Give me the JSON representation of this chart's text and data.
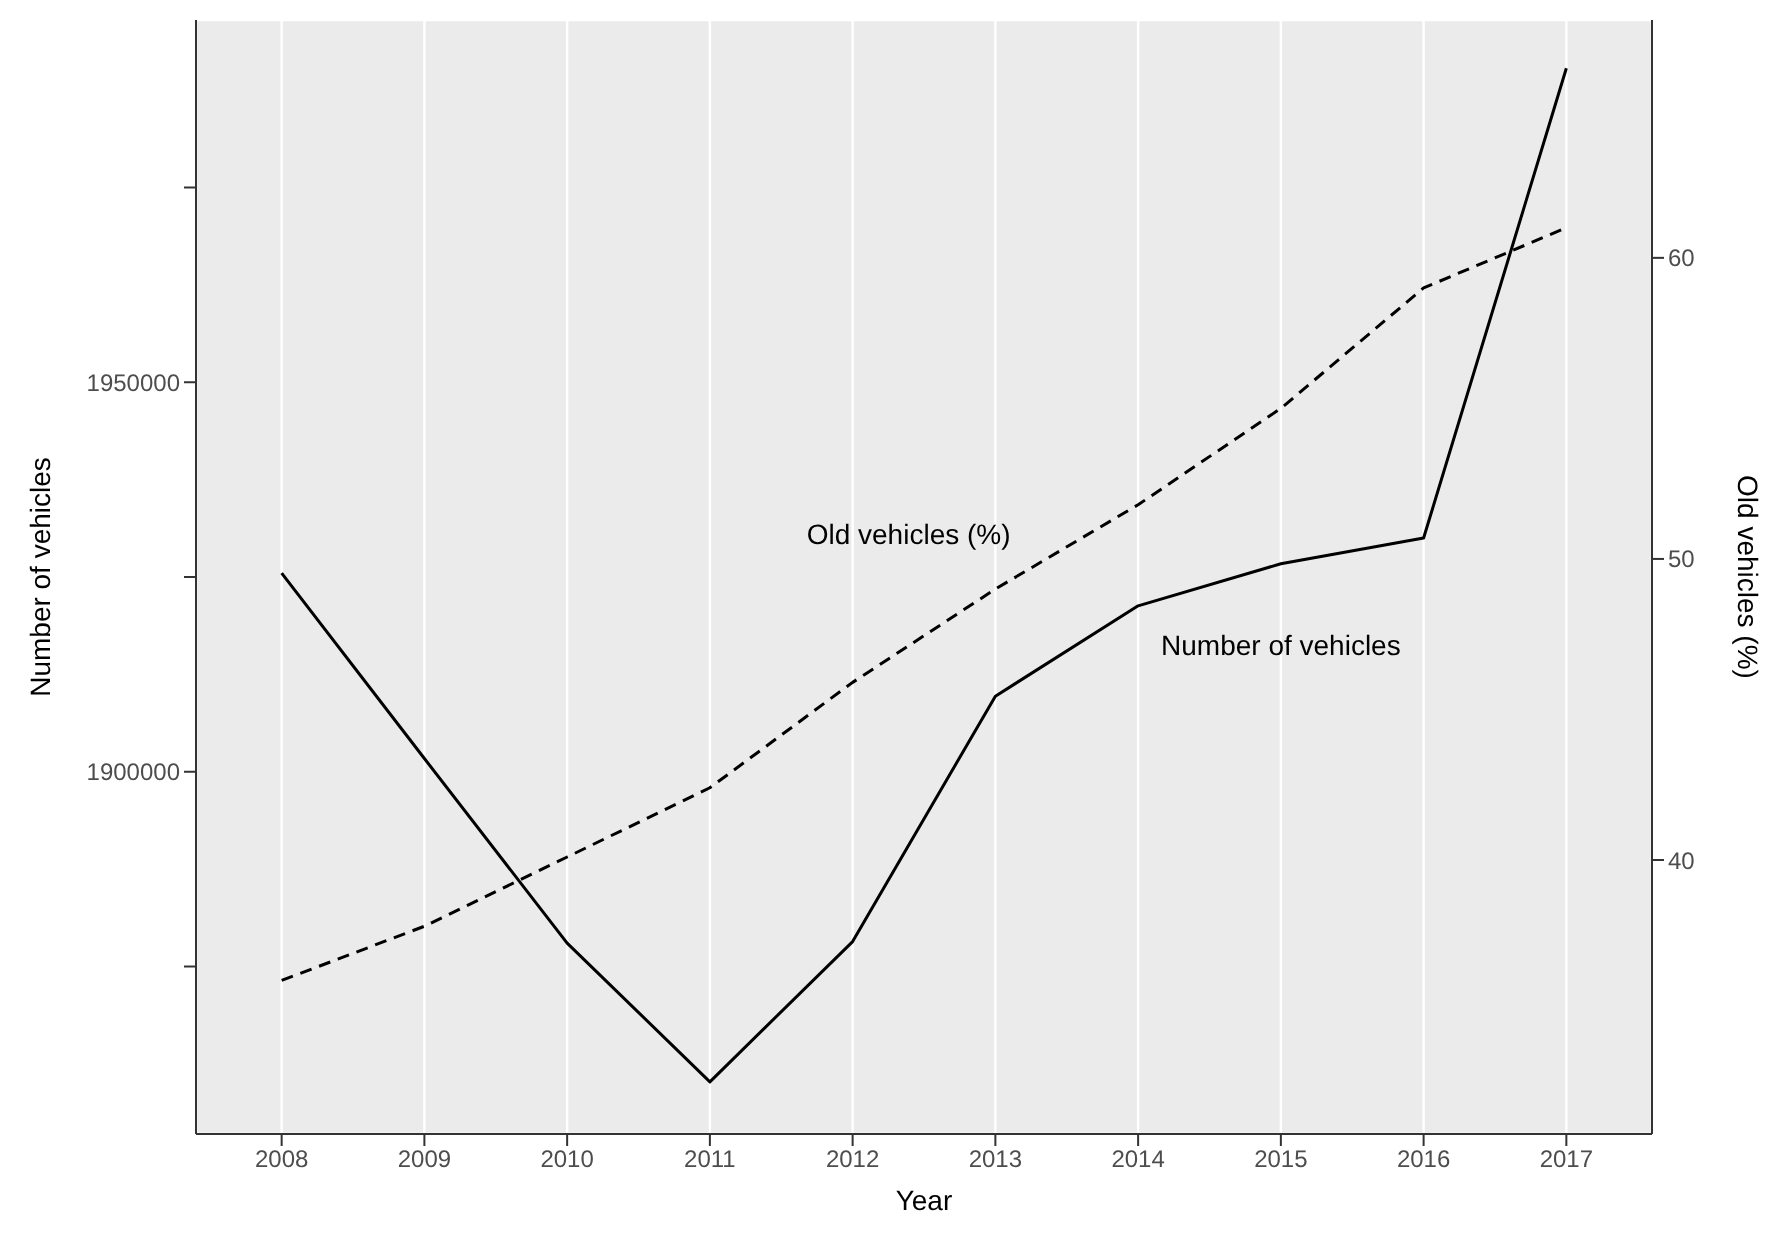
{
  "chart_data": {
    "type": "line",
    "xlabel": "Year",
    "ylabel": "Number of vehicles",
    "y2label": "Old vehicles (%)",
    "x": [
      2008,
      2009,
      2010,
      2011,
      2012,
      2013,
      2014,
      2015,
      2016,
      2017
    ],
    "xlim": [
      2007.4,
      2017.6
    ],
    "xticks": [
      2008,
      2009,
      2010,
      2011,
      2012,
      2013,
      2014,
      2015,
      2016,
      2017
    ],
    "ylim": [
      1853500,
      1996500
    ],
    "yticks": [
      {
        "value": 1875000,
        "label": null
      },
      1900000,
      {
        "value": 1925000,
        "label": null
      },
      1950000,
      {
        "value": 1975000,
        "label": null
      }
    ],
    "y2lim": [
      30.9,
      67.9
    ],
    "y2ticks": [
      40,
      50,
      60
    ],
    "grid": true,
    "legend": false,
    "marker": "none",
    "series": [
      {
        "name": "Number of vehicles",
        "color": "#000000",
        "line_style": "solid",
        "values": [
          1925500,
          1901700,
          1878000,
          1860200,
          1878200,
          1909700,
          1921300,
          1926700,
          1930000,
          1990300
        ]
      },
      {
        "name": "Old vehicles (%)",
        "color": "#000000",
        "line_style": "dashed",
        "axis": "y2",
        "values": [
          36.0,
          37.8,
          40.1,
          42.4,
          45.9,
          49.0,
          51.8,
          55.0,
          59.0,
          61.0
        ]
      }
    ]
  }
}
